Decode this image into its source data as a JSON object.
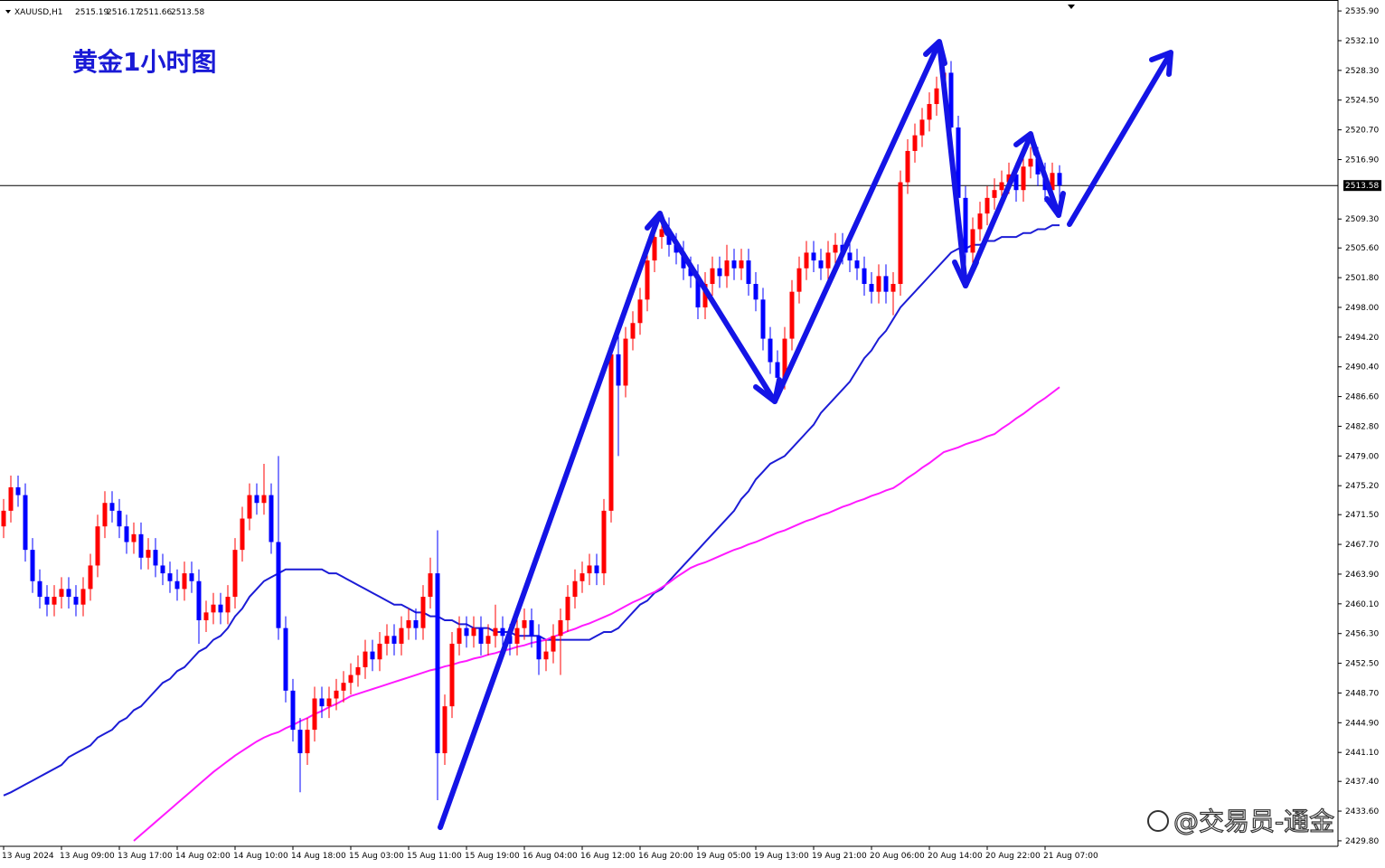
{
  "chart_data": {
    "type": "candlestick",
    "symbol": "XAUUSD,H1",
    "title": "黄金1小时图",
    "watermark": "@交易员-通金",
    "up_color": "#ff0000",
    "down_color": "#0000ff",
    "ylim": [
      2429.1,
      2537.3
    ],
    "yticks": [
      {
        "value": 2535.9,
        "label": "2535.90"
      },
      {
        "value": 2532.1,
        "label": "2532.10"
      },
      {
        "value": 2528.3,
        "label": "2528.30"
      },
      {
        "value": 2524.5,
        "label": "2524.50"
      },
      {
        "value": 2520.7,
        "label": "2520.70"
      },
      {
        "value": 2516.9,
        "label": "2516.90"
      },
      {
        "value": 2509.3,
        "label": "2509.30"
      },
      {
        "value": 2505.6,
        "label": "2505.60"
      },
      {
        "value": 2501.8,
        "label": "2501.80"
      },
      {
        "value": 2498,
        "label": "2498.00"
      },
      {
        "value": 2494.2,
        "label": "2494.20"
      },
      {
        "value": 2490.4,
        "label": "2490.40"
      },
      {
        "value": 2486.6,
        "label": "2486.60"
      },
      {
        "value": 2482.8,
        "label": "2482.80"
      },
      {
        "value": 2479,
        "label": "2479.00"
      },
      {
        "value": 2475.2,
        "label": "2475.20"
      },
      {
        "value": 2471.5,
        "label": "2471.50"
      },
      {
        "value": 2467.7,
        "label": "2467.70"
      },
      {
        "value": 2463.9,
        "label": "2463.90"
      },
      {
        "value": 2460.1,
        "label": "2460.10"
      },
      {
        "value": 2456.3,
        "label": "2456.30"
      },
      {
        "value": 2452.5,
        "label": "2452.50"
      },
      {
        "value": 2448.7,
        "label": "2448.70"
      },
      {
        "value": 2444.9,
        "label": "2444.90"
      },
      {
        "value": 2441.1,
        "label": "2441.10"
      },
      {
        "value": 2437.4,
        "label": "2437.40"
      },
      {
        "value": 2433.6,
        "label": "2433.60"
      },
      {
        "value": 2429.8,
        "label": "2429.80"
      }
    ],
    "last_price": 2513.58,
    "categories": [
      "13 Aug 2024",
      null,
      null,
      null,
      null,
      null,
      null,
      null,
      "13 Aug 09:00",
      null,
      null,
      null,
      null,
      null,
      null,
      null,
      "13 Aug 17:00",
      null,
      null,
      null,
      null,
      null,
      null,
      null,
      "14 Aug 02:00",
      null,
      null,
      null,
      null,
      null,
      null,
      null,
      "14 Aug 10:00",
      null,
      null,
      null,
      null,
      null,
      null,
      null,
      "14 Aug 18:00",
      null,
      null,
      null,
      null,
      null,
      null,
      null,
      "15 Aug 03:00",
      null,
      null,
      null,
      null,
      null,
      null,
      null,
      "15 Aug 11:00",
      null,
      null,
      null,
      null,
      null,
      null,
      null,
      "15 Aug 19:00",
      null,
      null,
      null,
      null,
      null,
      null,
      null,
      "16 Aug 04:00",
      null,
      null,
      null,
      null,
      null,
      null,
      null,
      "16 Aug 12:00",
      null,
      null,
      null,
      null,
      null,
      null,
      null,
      "16 Aug 20:00",
      null,
      null,
      null,
      null,
      null,
      null,
      null,
      "19 Aug 05:00",
      null,
      null,
      null,
      null,
      null,
      null,
      null,
      "19 Aug 13:00",
      null,
      null,
      null,
      null,
      null,
      null,
      null,
      "19 Aug 21:00",
      null,
      null,
      null,
      null,
      null,
      null,
      null,
      "20 Aug 06:00",
      null,
      null,
      null,
      null,
      null,
      null,
      null,
      "20 Aug 14:00",
      null,
      null,
      null,
      null,
      null,
      null,
      null,
      "20 Aug 22:00",
      null,
      null,
      null,
      null,
      null,
      null,
      null,
      "21 Aug 07:00",
      null,
      null
    ],
    "open": [
      2470,
      2472,
      2475,
      2474,
      2467,
      2463,
      2461,
      2460,
      2461,
      2462,
      2461,
      2460,
      2462,
      2465,
      2470,
      2473,
      2472,
      2470,
      2468,
      2469,
      2466,
      2467,
      2465,
      2464,
      2463,
      2462,
      2464,
      2463,
      2458,
      2459,
      2460,
      2459,
      2461,
      2467,
      2471,
      2474,
      2473,
      2474,
      2468,
      2457,
      2449,
      2444,
      2441,
      2444,
      2448,
      2447,
      2448,
      2449,
      2450,
      2451,
      2452,
      2454,
      2453,
      2455,
      2456,
      2455,
      2457,
      2458,
      2457,
      2461,
      2464,
      2441,
      2447,
      2455,
      2457,
      2456,
      2457,
      2455,
      2456,
      2457,
      2456,
      2455,
      2457,
      2458,
      2456,
      2453,
      2454,
      2456,
      2458,
      2461,
      2463,
      2464,
      2465,
      2464,
      2472,
      2492,
      2488,
      2494,
      2496,
      2499,
      2504,
      2507,
      2508,
      2506,
      2505,
      2503,
      2502,
      2498,
      2501,
      2503,
      2502,
      2504,
      2503,
      2504,
      2501,
      2499,
      2494,
      2491,
      2489,
      2494,
      2500,
      2503,
      2505,
      2504,
      2503,
      2505,
      2506,
      2505,
      2504,
      2503,
      2501,
      2500,
      2502,
      2500,
      2501,
      2514,
      2518,
      2520,
      2522,
      2524,
      2526,
      2528,
      2521,
      2512,
      2505,
      2508,
      2510,
      2512,
      2513,
      2514,
      2515,
      2513,
      2516,
      2517,
      2515,
      2513,
      2515.19
    ],
    "high": [
      2473.5,
      2476.5,
      2476.5,
      2475.5,
      2468.5,
      2464.5,
      2462.5,
      2462.5,
      2463.5,
      2463.5,
      2462.5,
      2463.5,
      2466.5,
      2471.5,
      2474.5,
      2474.5,
      2473.5,
      2471.5,
      2470.5,
      2470.5,
      2468.5,
      2468.5,
      2466.5,
      2465.5,
      2464.5,
      2465.5,
      2465.5,
      2464.5,
      2460.5,
      2461.5,
      2461.5,
      2462.5,
      2468.5,
      2472.5,
      2475.5,
      2475.5,
      2478,
      2475.5,
      2479,
      2458.5,
      2450.5,
      2445.5,
      2445.5,
      2449.5,
      2449.5,
      2449.5,
      2450.5,
      2451.5,
      2452.5,
      2453.5,
      2455.5,
      2455.5,
      2456.5,
      2457.5,
      2457.5,
      2458.5,
      2459.5,
      2459.5,
      2462.5,
      2466,
      2469.5,
      2448.5,
      2456.5,
      2458.5,
      2458.5,
      2458.5,
      2458.5,
      2457.5,
      2460,
      2458.5,
      2457.5,
      2458.5,
      2459.5,
      2459.5,
      2457.5,
      2455.5,
      2457.5,
      2459.5,
      2462.5,
      2464.5,
      2465.5,
      2466.5,
      2466.5,
      2473.5,
      2493.5,
      2496,
      2495.5,
      2497.5,
      2500.5,
      2505.5,
      2508.5,
      2509.5,
      2509.5,
      2507.5,
      2506.5,
      2504.5,
      2503.5,
      2502.5,
      2504.5,
      2504.5,
      2506,
      2505.5,
      2505.5,
      2505.5,
      2502.5,
      2500.5,
      2495.5,
      2492.5,
      2495.5,
      2501.5,
      2504.5,
      2506.5,
      2506.5,
      2505.5,
      2506.5,
      2507.5,
      2507.5,
      2506.5,
      2505.5,
      2504.5,
      2502.5,
      2503.5,
      2503.5,
      2502.5,
      2515.5,
      2519.5,
      2521.5,
      2523.5,
      2525.5,
      2527.5,
      2529.5,
      2529.5,
      2522.5,
      2513.5,
      2509.5,
      2511.5,
      2513.5,
      2514.5,
      2515.5,
      2516.5,
      2516.5,
      2517.5,
      2518.5,
      2518.5,
      2516.5,
      2516.5,
      2516.17
    ],
    "low": [
      2468.5,
      2470.5,
      2472.5,
      2465.5,
      2461.5,
      2459.5,
      2458.5,
      2458.5,
      2459.5,
      2459.5,
      2458.5,
      2458.5,
      2460.5,
      2463.5,
      2468.5,
      2470.5,
      2468.5,
      2466.5,
      2466.5,
      2464.5,
      2464.5,
      2463.5,
      2462.5,
      2461.5,
      2460.5,
      2460.5,
      2461.5,
      2455,
      2456.5,
      2457.5,
      2457.5,
      2457.5,
      2459.5,
      2465.5,
      2469.5,
      2471.5,
      2471.5,
      2466.5,
      2455.5,
      2447.5,
      2442.5,
      2436,
      2439.5,
      2442.5,
      2445.5,
      2445.5,
      2446.5,
      2447.5,
      2448.5,
      2449.5,
      2450.5,
      2451.5,
      2451.5,
      2453.5,
      2453.5,
      2453.5,
      2455.5,
      2455.5,
      2455.5,
      2459.5,
      2435,
      2439.5,
      2445.5,
      2453.5,
      2454.5,
      2454.5,
      2453.5,
      2453.5,
      2454.5,
      2454.5,
      2453.5,
      2453.5,
      2455.5,
      2454.5,
      2451,
      2451.5,
      2452.5,
      2451,
      2456.5,
      2459.5,
      2461.5,
      2462.5,
      2462.5,
      2462.5,
      2470.5,
      2479,
      2486.5,
      2492.5,
      2494.5,
      2497.5,
      2502.5,
      2505.5,
      2504.5,
      2503.5,
      2501.5,
      2500.5,
      2496.5,
      2496.5,
      2499.5,
      2500.5,
      2500.5,
      2501.5,
      2501.5,
      2499.5,
      2497.5,
      2492.5,
      2489.5,
      2486,
      2487.5,
      2492.5,
      2498.5,
      2501.5,
      2502.5,
      2501.5,
      2501.5,
      2503.5,
      2503.5,
      2502.5,
      2501.5,
      2499.5,
      2498.5,
      2498.5,
      2498.5,
      2497,
      2499.5,
      2512.5,
      2516.5,
      2518.5,
      2520.5,
      2522.5,
      2524.5,
      2519.5,
      2510.5,
      2503.5,
      2503.5,
      2506.5,
      2508.5,
      2510.5,
      2511.5,
      2512.5,
      2511.5,
      2511.5,
      2514.5,
      2513.5,
      2511.5,
      2511.5,
      2511.66
    ],
    "close": [
      2472,
      2475,
      2474,
      2467,
      2463,
      2461,
      2460,
      2461,
      2462,
      2461,
      2460,
      2462,
      2465,
      2470,
      2473,
      2472,
      2470,
      2468,
      2469,
      2466,
      2467,
      2465,
      2464,
      2463,
      2462,
      2464,
      2463,
      2458,
      2459,
      2460,
      2459,
      2461,
      2467,
      2471,
      2474,
      2473,
      2474,
      2468,
      2457,
      2449,
      2444,
      2441,
      2444,
      2448,
      2447,
      2448,
      2449,
      2450,
      2451,
      2452,
      2454,
      2453,
      2455,
      2456,
      2455,
      2457,
      2458,
      2457,
      2461,
      2464,
      2441,
      2447,
      2455,
      2457,
      2456,
      2457,
      2455,
      2456,
      2457,
      2456,
      2455,
      2457,
      2458,
      2456,
      2453,
      2454,
      2456,
      2458,
      2461,
      2463,
      2464,
      2465,
      2464,
      2472,
      2492,
      2488,
      2494,
      2496,
      2499,
      2504,
      2507,
      2508,
      2506,
      2505,
      2503,
      2502,
      2498,
      2501,
      2503,
      2502,
      2504,
      2503,
      2504,
      2501,
      2499,
      2494,
      2491,
      2489,
      2494,
      2500,
      2503,
      2505,
      2504,
      2503,
      2505,
      2506,
      2505,
      2504,
      2503,
      2501,
      2500,
      2502,
      2500,
      2501,
      2514,
      2518,
      2520,
      2522,
      2524,
      2526,
      2528,
      2521,
      2512,
      2505,
      2508,
      2510,
      2512,
      2513,
      2514,
      2515,
      2513,
      2516,
      2517,
      2515,
      2513,
      2515.19,
      2513.58
    ],
    "lines": [
      {
        "color": "#1c1cd6",
        "values": [
          2435.6,
          2436,
          2436.5,
          2437,
          2437.5,
          2438,
          2438.5,
          2439,
          2439.5,
          2440.5,
          2441,
          2441.5,
          2442,
          2443,
          2443.5,
          2444,
          2445,
          2445.5,
          2446.5,
          2447,
          2448,
          2449,
          2450,
          2450.5,
          2451.5,
          2452,
          2453,
          2454,
          2454.5,
          2455.5,
          2456,
          2457,
          2458.5,
          2459.5,
          2461,
          2462,
          2463,
          2463.5,
          2464,
          2464.5,
          2464.5,
          2464.5,
          2464.5,
          2464.5,
          2464.5,
          2464,
          2464,
          2463.5,
          2463,
          2462.5,
          2462,
          2461.5,
          2461,
          2460.5,
          2460,
          2460,
          2459.5,
          2459,
          2459,
          2458.5,
          2458.5,
          2458,
          2458,
          2457.5,
          2457.5,
          2457,
          2457,
          2457,
          2456.5,
          2456.5,
          2456.5,
          2456,
          2456,
          2456,
          2456,
          2455.5,
          2455.5,
          2455.5,
          2455.5,
          2455.5,
          2455.5,
          2455.5,
          2456,
          2456.5,
          2456.5,
          2457,
          2458,
          2459,
          2460,
          2460.5,
          2461.5,
          2462,
          2463,
          2464,
          2465,
          2466,
          2467,
          2468,
          2469,
          2470,
          2471,
          2472,
          2473.5,
          2474.5,
          2476,
          2477,
          2478,
          2478.5,
          2479,
          2480,
          2481,
          2482,
          2483,
          2484.5,
          2485.5,
          2486.5,
          2487.5,
          2488.5,
          2490,
          2491.5,
          2492.5,
          2494,
          2495,
          2496.5,
          2498,
          2499,
          2500,
          2501,
          2502,
          2503,
          2504,
          2505,
          2505.5,
          2505.5,
          2506,
          2506,
          2506.5,
          2506.5,
          2507,
          2507,
          2507,
          2507.5,
          2507.5,
          2508,
          2508,
          2508.5,
          2508.5
        ]
      },
      {
        "color": "#ff1aff",
        "values": [
          null,
          null,
          null,
          null,
          null,
          null,
          null,
          null,
          null,
          null,
          null,
          null,
          null,
          null,
          null,
          null,
          null,
          null,
          2429.8,
          2430.6,
          2431.4,
          2432.2,
          2433,
          2433.8,
          2434.6,
          2435.4,
          2436.2,
          2437,
          2437.8,
          2438.6,
          2439.3,
          2440,
          2440.7,
          2441.3,
          2441.9,
          2442.5,
          2443,
          2443.4,
          2443.7,
          2444.2,
          2444.6,
          2445.1,
          2445.5,
          2446,
          2446.4,
          2446.9,
          2447.3,
          2447.8,
          2448.3,
          2448.6,
          2448.9,
          2449.2,
          2449.5,
          2449.8,
          2450.1,
          2450.4,
          2450.7,
          2451,
          2451.3,
          2451.6,
          2451.8,
          2452.1,
          2452.3,
          2452.6,
          2452.8,
          2453.1,
          2453.3,
          2453.6,
          2453.8,
          2454.1,
          2454.3,
          2454.6,
          2454.8,
          2455.1,
          2455.3,
          2455.5,
          2455.9,
          2456.2,
          2456.6,
          2456.9,
          2457.3,
          2457.6,
          2458,
          2458.4,
          2458.8,
          2459.3,
          2459.8,
          2460.3,
          2460.7,
          2461.2,
          2461.6,
          2462.2,
          2462.8,
          2463.5,
          2464.1,
          2464.7,
          2465.1,
          2465.4,
          2465.8,
          2466.2,
          2466.6,
          2467,
          2467.3,
          2467.7,
          2468,
          2468.4,
          2468.8,
          2469.2,
          2469.5,
          2469.9,
          2470.3,
          2470.7,
          2471,
          2471.4,
          2471.7,
          2472.1,
          2472.5,
          2472.8,
          2473.2,
          2473.5,
          2473.9,
          2474.2,
          2474.6,
          2474.9,
          2475.5,
          2476.2,
          2476.8,
          2477.5,
          2478.1,
          2478.8,
          2479.5,
          2479.8,
          2480.1,
          2480.5,
          2480.8,
          2481.1,
          2481.5,
          2481.8,
          2482.5,
          2483.1,
          2483.8,
          2484.4,
          2485.1,
          2485.8,
          2486.4,
          2487.1,
          2487.8
        ]
      }
    ]
  }
}
